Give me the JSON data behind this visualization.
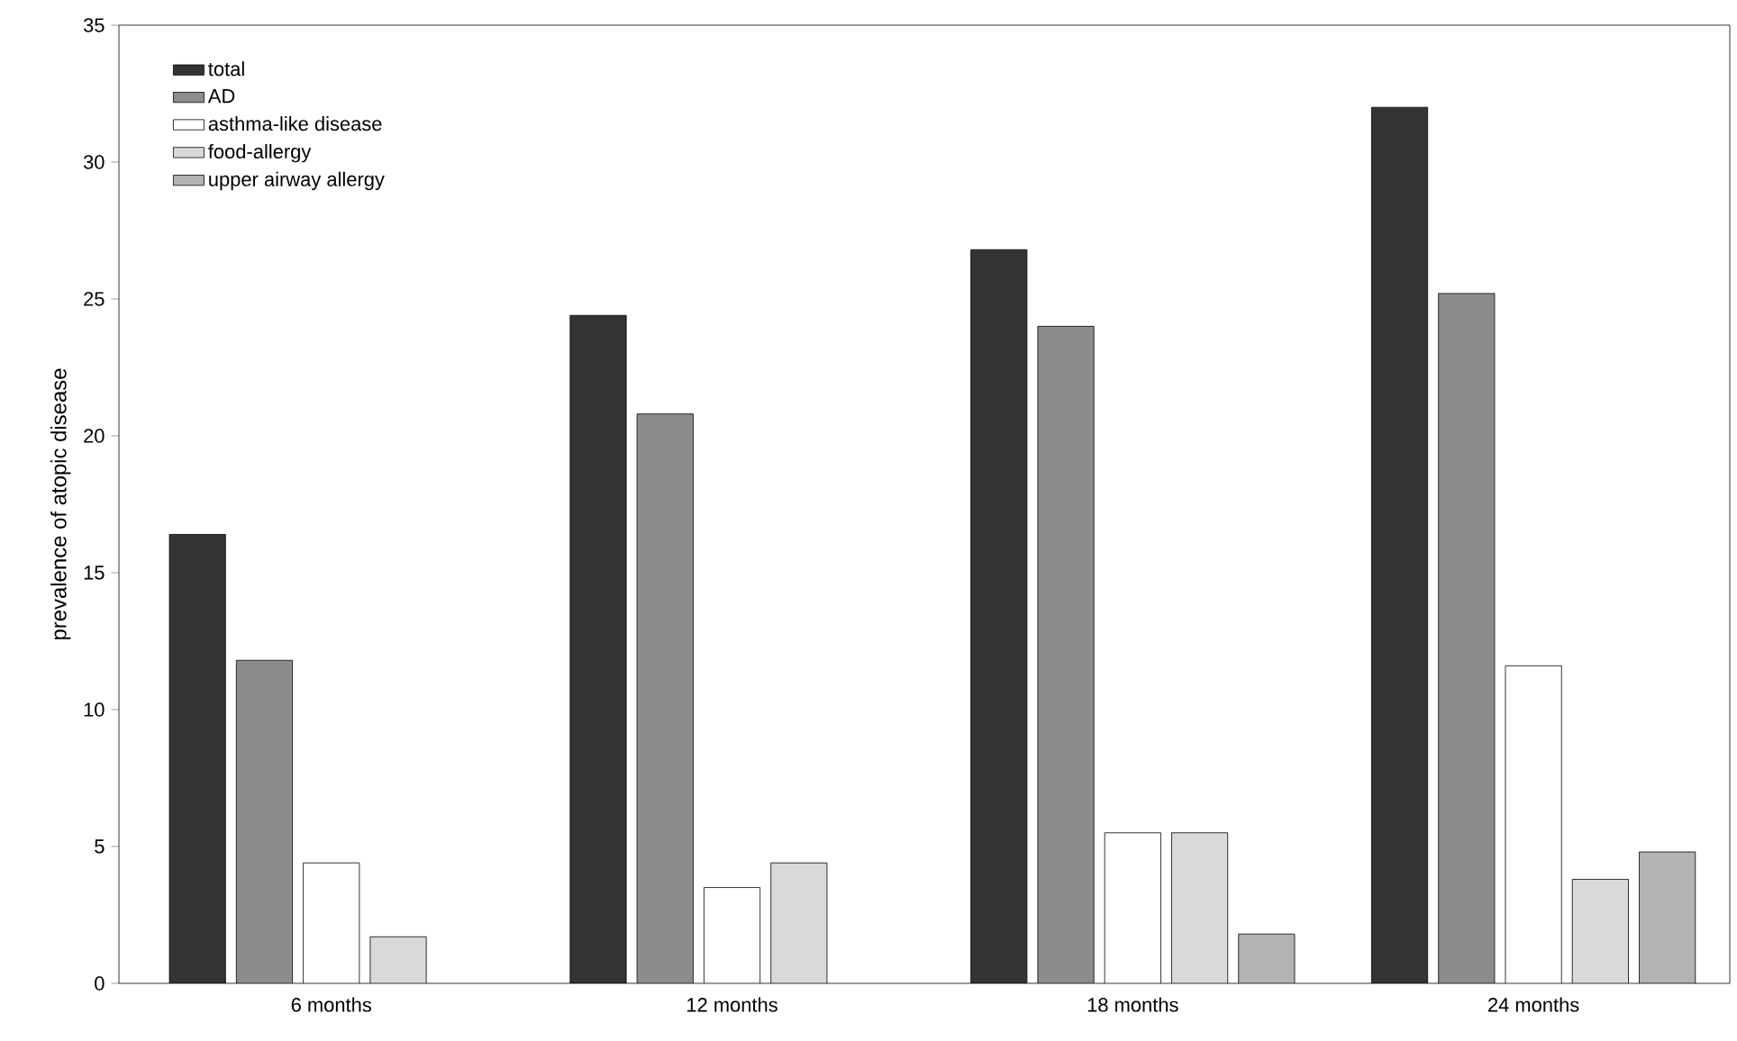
{
  "chart_data": {
    "type": "bar",
    "ylabel": "prevalence of atopic disease",
    "categories": [
      "6 months",
      "12 months",
      "18 months",
      "24 months"
    ],
    "series": [
      {
        "name": "total",
        "color": "#333333",
        "values": [
          16.4,
          24.4,
          26.8,
          32.0
        ]
      },
      {
        "name": "AD",
        "color": "#8c8c8c",
        "values": [
          11.8,
          20.8,
          24.0,
          25.2
        ]
      },
      {
        "name": "asthma-like disease",
        "color": "#ffffff",
        "values": [
          4.4,
          3.5,
          5.5,
          11.6
        ]
      },
      {
        "name": "food-allergy",
        "color": "#d9d9d9",
        "values": [
          1.7,
          4.4,
          5.5,
          3.8
        ]
      },
      {
        "name": "upper airway allergy",
        "color": "#b3b3b3",
        "values": [
          null,
          null,
          1.8,
          4.8
        ]
      }
    ],
    "ylim": [
      0,
      35
    ],
    "yticks": [
      0,
      5,
      10,
      15,
      20,
      25,
      30,
      35
    ],
    "grid": false,
    "legend": "top left"
  }
}
